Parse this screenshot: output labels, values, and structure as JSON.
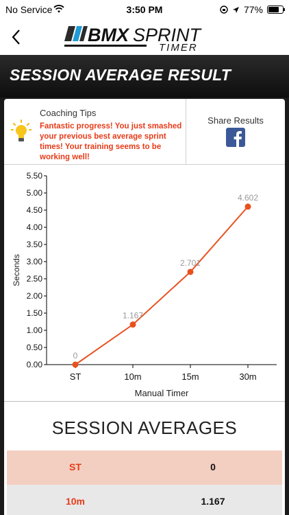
{
  "status_bar": {
    "carrier": "No Service",
    "time": "3:50 PM",
    "battery": "77%",
    "battery_level": 0.77
  },
  "nav": {
    "logo_main": "BMX",
    "logo_accent": "SPRINT",
    "logo_sub": "TIMER"
  },
  "banner": {
    "title": "SESSION AVERAGE RESULT"
  },
  "tips": {
    "title": "Coaching Tips",
    "message": "Fantastic progress! You just smashed your previous best average sprint times! Your training seems to be working well!"
  },
  "share": {
    "label": "Share Results"
  },
  "chart_data": {
    "type": "line",
    "categories": [
      "ST",
      "10m",
      "15m",
      "30m"
    ],
    "values": [
      0,
      1.167,
      2.701,
      4.602
    ],
    "labels": [
      "0",
      "1.167",
      "2.701",
      "4.602"
    ],
    "xlabel": "Manual Timer",
    "ylabel": "Seconds",
    "ylim": [
      0,
      5.5
    ],
    "yticks": [
      "0.00",
      "0.50",
      "1.00",
      "1.50",
      "2.00",
      "2.50",
      "3.00",
      "3.50",
      "4.00",
      "4.50",
      "5.00",
      "5.50"
    ],
    "grid": false,
    "line_color": "#e8501e"
  },
  "averages": {
    "title": "SESSION AVERAGES",
    "rows": [
      {
        "label": "ST",
        "value": "0"
      },
      {
        "label": "10m",
        "value": "1.167"
      }
    ]
  },
  "colors": {
    "accent": "#e63b19",
    "row_highlight": "#f3cfc1",
    "row_alt": "#e8e8e8"
  }
}
